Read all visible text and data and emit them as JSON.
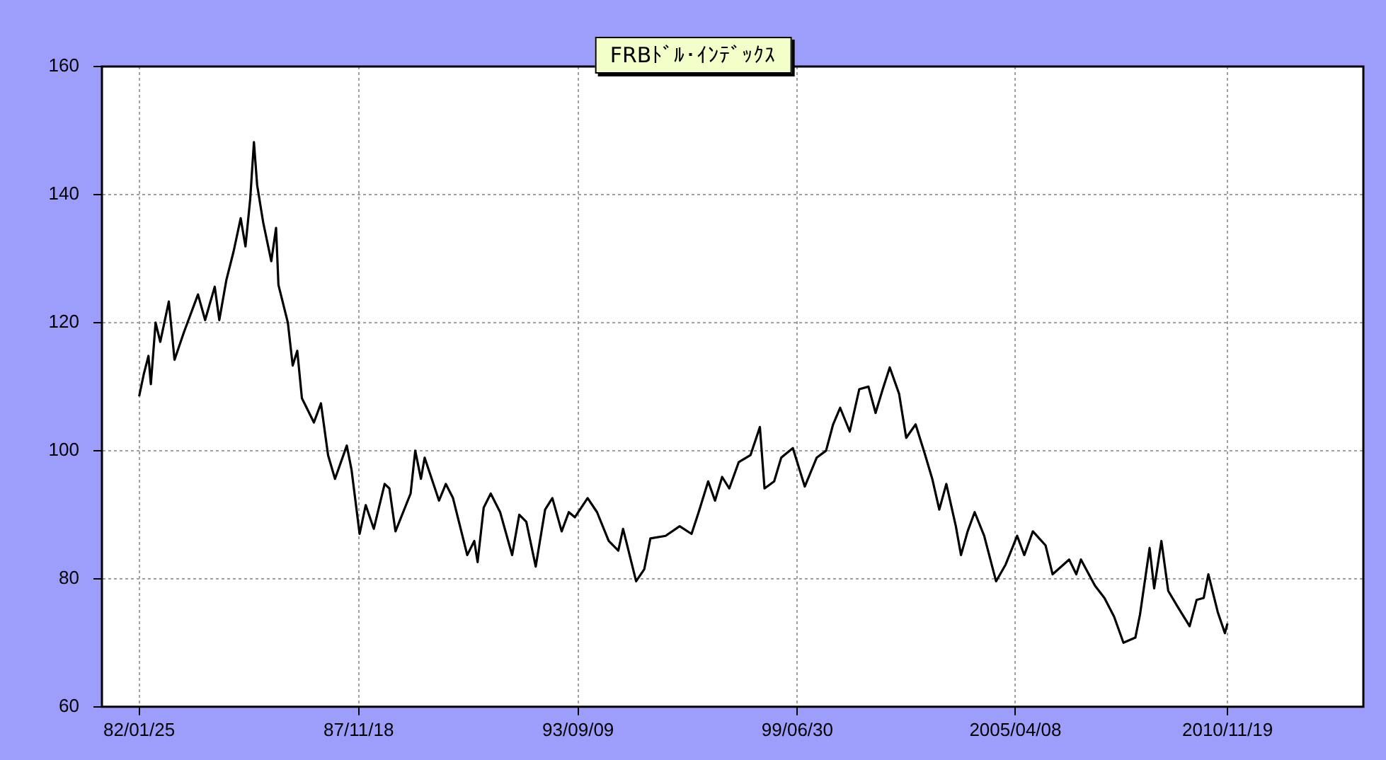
{
  "chart_data": {
    "type": "line",
    "title": "FRBﾄﾞﾙ･ｲﾝﾃﾞｯｸｽ",
    "x": [
      "1982-01-25",
      "1982-03-10",
      "1982-04-25",
      "1982-05-18",
      "1982-07-03",
      "1982-08-17",
      "1982-11-08",
      "1983-01-02",
      "1983-04-03",
      "1983-08-17",
      "1983-10-25",
      "1984-01-26",
      "1984-03-10",
      "1984-05-18",
      "1984-07-26",
      "1984-10-03",
      "1984-11-18",
      "1985-01-03",
      "1985-02-08",
      "1985-03-11",
      "1985-05-09",
      "1985-07-26",
      "1985-09-10",
      "1985-10-03",
      "1986-01-02",
      "1986-02-18",
      "1986-04-03",
      "1986-05-18",
      "1986-09-11",
      "1986-11-18",
      "1987-01-26",
      "1987-04-03",
      "1987-07-26",
      "1987-09-10",
      "1987-11-27",
      "1988-01-25",
      "1988-04-12",
      "1988-07-26",
      "1988-09-10",
      "1988-11-08",
      "1989-04-03",
      "1989-05-18",
      "1989-07-12",
      "1989-08-17",
      "1990-01-03",
      "1990-03-10",
      "1990-05-18",
      "1990-10-03",
      "1990-12-10",
      "1991-01-11",
      "1991-03-11",
      "1991-05-18",
      "1991-08-17",
      "1991-12-11",
      "1992-02-18",
      "1992-04-26",
      "1992-07-26",
      "1992-10-25",
      "1993-01-03",
      "1993-04-03",
      "1993-06-11",
      "1993-08-09",
      "1993-12-10",
      "1994-03-11",
      "1994-07-02",
      "1994-10-03",
      "1994-11-18",
      "1995-03-24",
      "1995-06-11",
      "1995-08-09",
      "1996-01-03",
      "1996-05-18",
      "1996-09-10",
      "1996-11-18",
      "1997-02-18",
      "1997-04-25",
      "1997-07-03",
      "1997-09-10",
      "1997-12-10",
      "1998-04-03",
      "1998-07-03",
      "1998-08-17",
      "1998-11-18",
      "1999-01-25",
      "1999-05-18",
      "1999-09-10",
      "2000-01-03",
      "2000-04-03",
      "2000-06-10",
      "2000-08-17",
      "2000-11-18",
      "2001-02-18",
      "2001-05-18",
      "2001-07-26",
      "2001-10-03",
      "2001-12-10",
      "2002-03-10",
      "2002-05-18",
      "2002-08-17",
      "2002-11-18",
      "2003-01-25",
      "2003-04-03",
      "2003-06-10",
      "2003-09-10",
      "2003-10-30",
      "2004-01-02",
      "2004-03-10",
      "2004-06-10",
      "2004-10-03",
      "2005-01-03",
      "2005-04-25",
      "2005-07-03",
      "2005-09-24",
      "2006-01-25",
      "2006-04-03",
      "2006-09-10",
      "2006-11-18",
      "2007-01-02",
      "2007-05-18",
      "2007-08-17",
      "2007-11-18",
      "2008-02-17",
      "2008-06-11",
      "2008-07-26",
      "2008-10-27",
      "2008-12-10",
      "2009-02-18",
      "2009-04-25",
      "2009-07-26",
      "2009-11-18",
      "2010-01-25",
      "2010-04-03",
      "2010-05-18",
      "2010-08-17",
      "2010-10-25",
      "2010-11-19"
    ],
    "series": [
      {
        "color": "#000000",
        "values": [
          108.5,
          111.9,
          114.8,
          110.4,
          120,
          117,
          123.3,
          114.2,
          118.5,
          124.4,
          120.4,
          125.6,
          120.4,
          126.7,
          131.1,
          136.3,
          131.9,
          139.3,
          148.2,
          141.5,
          135.6,
          129.6,
          134.8,
          125.9,
          120,
          113.3,
          115.6,
          108.2,
          104.4,
          107.4,
          99.3,
          95.6,
          100.8,
          97,
          87,
          91.5,
          87.8,
          94.8,
          94.1,
          87.4,
          93.3,
          100,
          95.6,
          98.9,
          92.2,
          94.8,
          92.6,
          83.7,
          85.9,
          82.6,
          91.1,
          93.3,
          90.4,
          83.7,
          90,
          88.9,
          81.9,
          90.8,
          92.6,
          87.4,
          90.4,
          89.6,
          92.6,
          90.4,
          85.9,
          84.4,
          87.8,
          79.6,
          81.5,
          86.3,
          86.7,
          88.2,
          87,
          90.4,
          95.2,
          92.2,
          95.9,
          94.1,
          98.2,
          99.3,
          103.7,
          94.1,
          95.2,
          98.9,
          100.4,
          94.4,
          98.9,
          100,
          104.1,
          106.7,
          103,
          109.6,
          110,
          105.9,
          109.6,
          113,
          108.9,
          102,
          104.1,
          99.3,
          95.6,
          90.8,
          94.8,
          88.2,
          83.7,
          87.4,
          90.4,
          86.7,
          79.6,
          82.2,
          86.7,
          83.7,
          87.4,
          85.2,
          80.7,
          83,
          80.7,
          83,
          78.9,
          77,
          74.1,
          70,
          70.8,
          74.4,
          84.8,
          78.5,
          85.9,
          78.1,
          75.6,
          72.6,
          76.7,
          77,
          80.7,
          74.8,
          71.5,
          73
        ]
      }
    ],
    "xlim": [
      "1981-01-30",
      "2014-06-25"
    ],
    "xticks": [
      {
        "value": "1982-01-25",
        "label": "82/01/25"
      },
      {
        "value": "1987-11-18",
        "label": "87/11/18"
      },
      {
        "value": "1993-09-09",
        "label": "93/09/09"
      },
      {
        "value": "1999-06-30",
        "label": "99/06/30"
      },
      {
        "value": "2005-04-08",
        "label": "2005/04/08"
      },
      {
        "value": "2010-11-19",
        "label": "2010/11/19"
      }
    ],
    "ylim": [
      60,
      160
    ],
    "yticks": [
      60,
      80,
      100,
      120,
      140,
      160
    ],
    "grid": true,
    "legend": false,
    "marker": "none",
    "line_style": "solid"
  }
}
